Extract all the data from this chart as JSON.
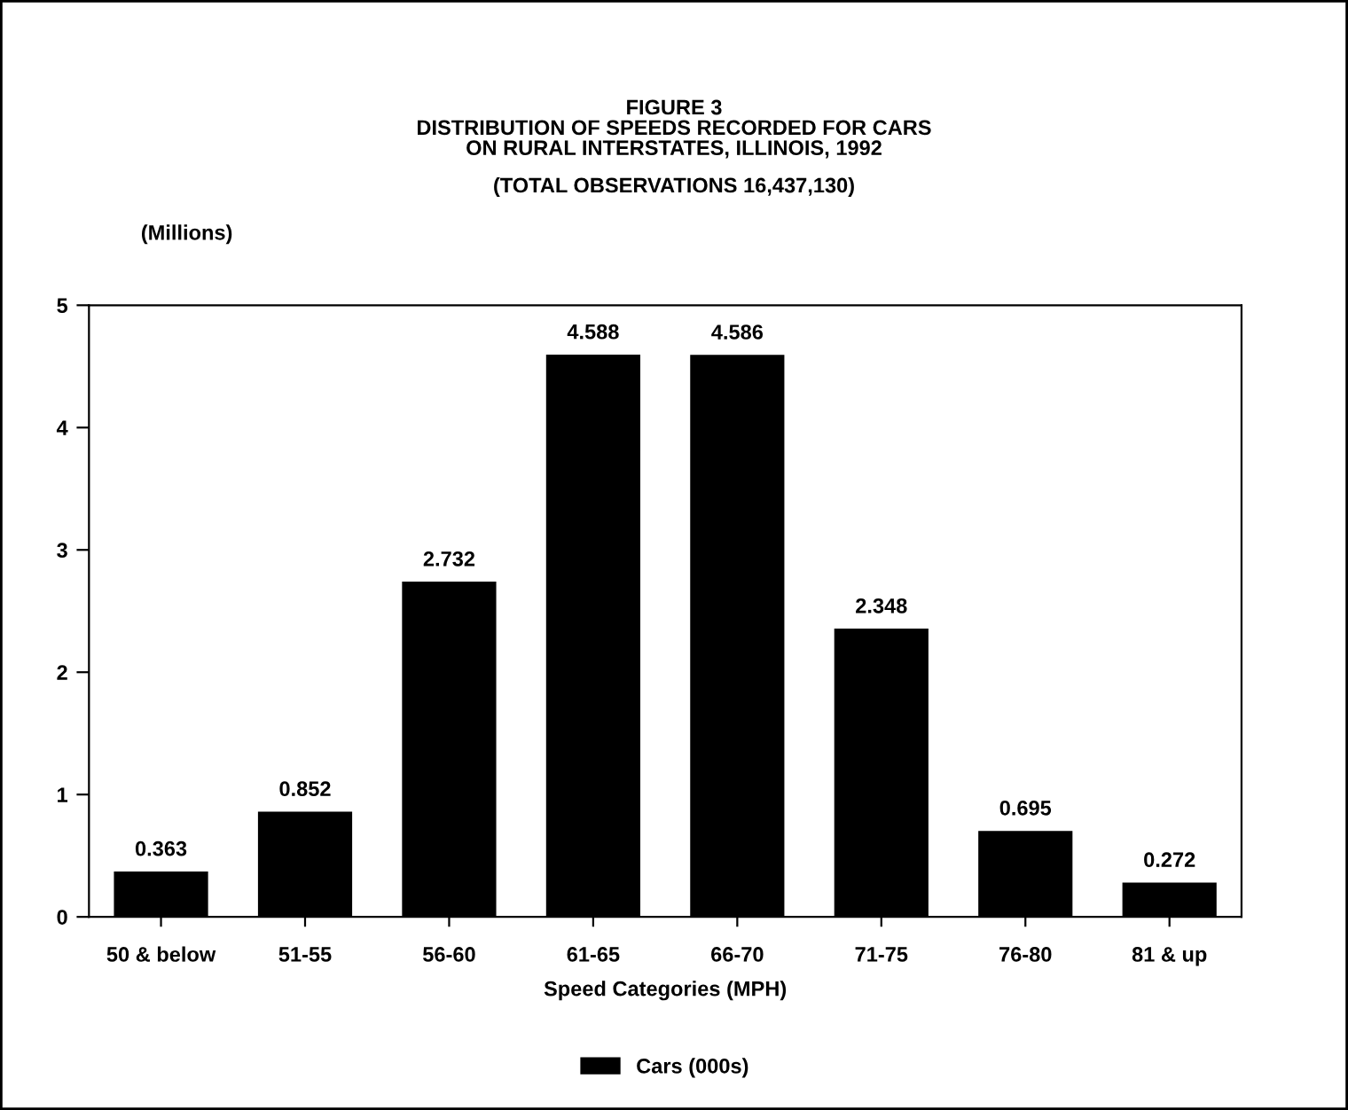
{
  "chart_data": {
    "type": "bar",
    "title": "FIGURE 3\nDISTRIBUTION OF SPEEDS RECORDED FOR CARS\nON RURAL INTERSTATES, ILLINOIS, 1992",
    "subtitle": "(TOTAL OBSERVATIONS 16,437,130)",
    "xlabel": "Speed Categories (MPH)",
    "ylabel": "(Millions)",
    "categories": [
      "50 & below",
      "51-55",
      "56-60",
      "61-65",
      "66-70",
      "71-75",
      "76-80",
      "81 & up"
    ],
    "series": [
      {
        "name": "Cars (000s)",
        "color": "#000000",
        "values": [
          0.363,
          0.852,
          2.732,
          4.588,
          4.586,
          2.348,
          0.695,
          0.272
        ]
      }
    ],
    "ylim": [
      0,
      5
    ],
    "yticks": [
      0,
      1,
      2,
      3,
      4,
      5
    ],
    "data_labels": true,
    "legend": "bottom"
  }
}
